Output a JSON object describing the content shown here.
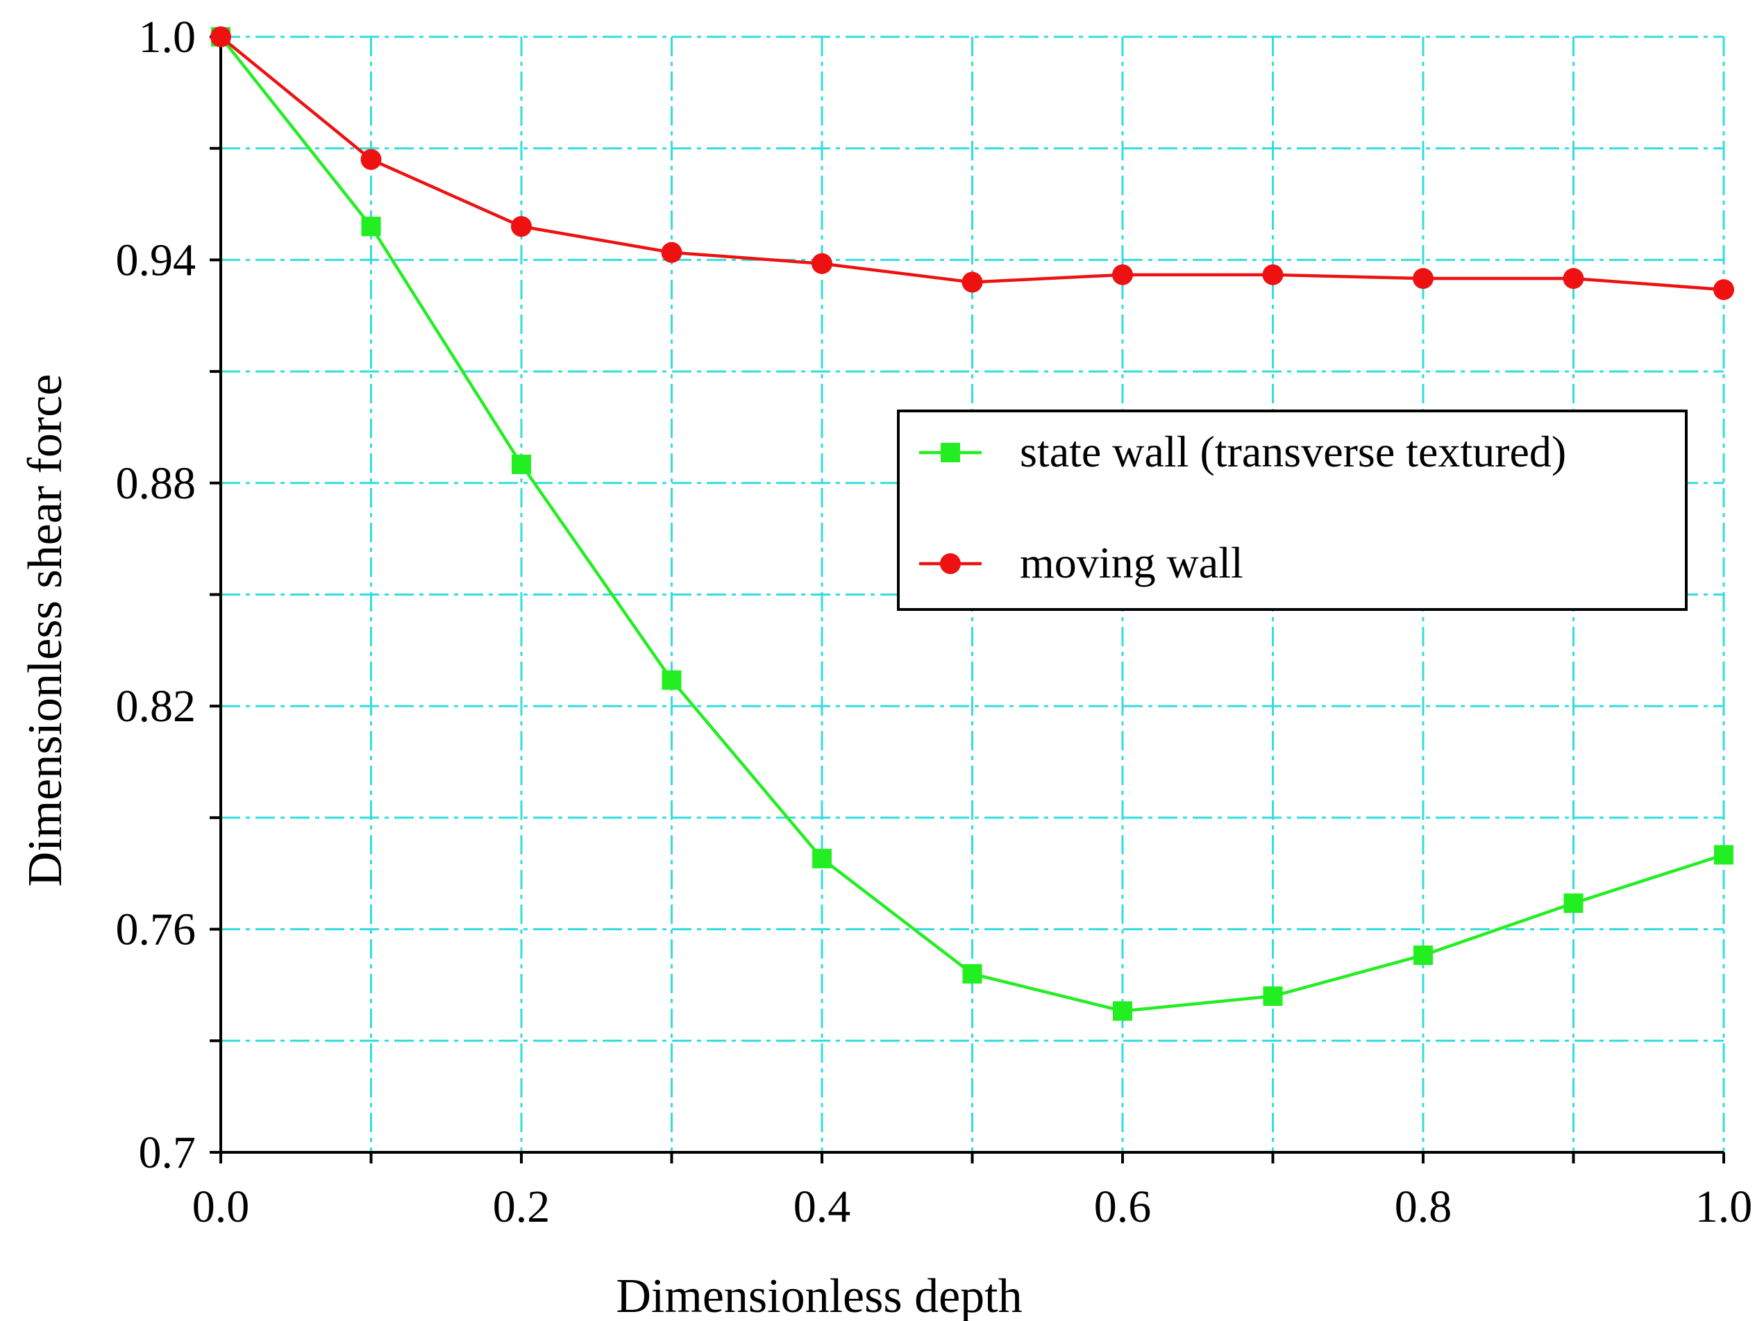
{
  "chart_data": {
    "type": "line",
    "title": "",
    "xlabel": "Dimensionless depth",
    "ylabel": "Dimensionless shear force",
    "xlim": [
      0.0,
      1.0
    ],
    "ylim": [
      0.7,
      1.0
    ],
    "x_ticks": [
      {
        "value": 0.0,
        "label": "0.0"
      },
      {
        "value": 0.2,
        "label": "0.2"
      },
      {
        "value": 0.4,
        "label": "0.4"
      },
      {
        "value": 0.6,
        "label": "0.6"
      },
      {
        "value": 0.8,
        "label": "0.8"
      },
      {
        "value": 1.0,
        "label": "1.0"
      }
    ],
    "y_ticks": [
      {
        "value": 0.7,
        "label": "0.7"
      },
      {
        "value": 0.76,
        "label": "0.76"
      },
      {
        "value": 0.82,
        "label": "0.82"
      },
      {
        "value": 0.88,
        "label": "0.88"
      },
      {
        "value": 0.94,
        "label": "0.94"
      },
      {
        "value": 1.0,
        "label": "1.0"
      }
    ],
    "x_grid": [
      0.0,
      0.1,
      0.2,
      0.3,
      0.4,
      0.5,
      0.6,
      0.7,
      0.8,
      0.9,
      1.0
    ],
    "y_grid": [
      0.7,
      0.73,
      0.76,
      0.79,
      0.82,
      0.85,
      0.88,
      0.91,
      0.94,
      0.97,
      1.0
    ],
    "grid": true,
    "legend_position": "center-right",
    "x": [
      0.0,
      0.1,
      0.2,
      0.3,
      0.4,
      0.5,
      0.6,
      0.7,
      0.8,
      0.9,
      1.0
    ],
    "series": [
      {
        "name": "state wall (transverse textured)",
        "color": "#22ee22",
        "marker": "square",
        "values": [
          1.0,
          0.949,
          0.885,
          0.827,
          0.779,
          0.748,
          0.738,
          0.742,
          0.753,
          0.767,
          0.78
        ]
      },
      {
        "name": "moving wall",
        "color": "#ee1111",
        "marker": "circle",
        "values": [
          1.0,
          0.967,
          0.949,
          0.942,
          0.939,
          0.934,
          0.936,
          0.936,
          0.935,
          0.935,
          0.932
        ]
      }
    ],
    "colors": {
      "grid": "#33dddd",
      "axis": "#000000",
      "background": "#ffffff"
    }
  }
}
